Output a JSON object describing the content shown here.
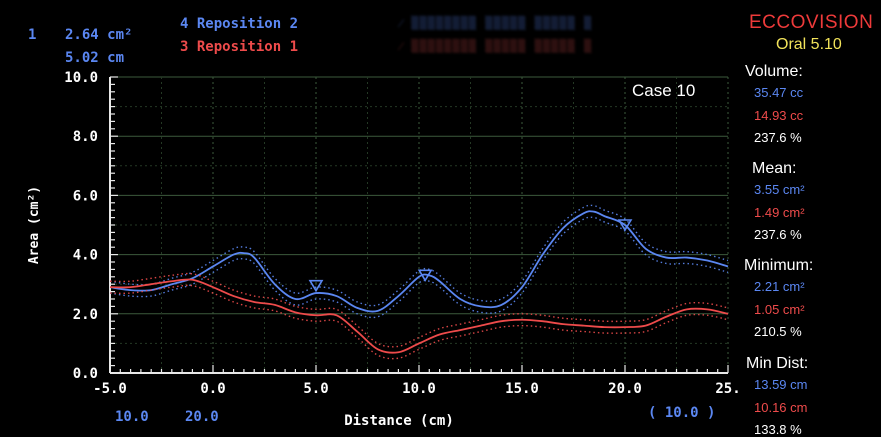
{
  "header": {
    "cursor_index": "1",
    "cursor_area": "2.64 cm²",
    "cursor_dist": "5.02 cm",
    "legend_blue": "4 Reposition 2",
    "legend_red": "3 Reposition 1",
    "brand": "ECCOVISION",
    "version": "Oral 5.10"
  },
  "case_label": "Case 10",
  "footer": {
    "left_a": "10.0",
    "left_b": "20.0",
    "right": "( 10.0 )"
  },
  "stats": {
    "volume_label": "Volume:",
    "volume_blue": "35.47 cc",
    "volume_red": "14.93 cc",
    "volume_pct": "237.6 %",
    "mean_label": "Mean:",
    "mean_blue": "3.55 cm²",
    "mean_red": "1.49 cm²",
    "mean_pct": "237.6 %",
    "min_label": "Minimum:",
    "min_blue": "2.21 cm²",
    "min_red": "1.05 cm²",
    "min_pct": "210.5 %",
    "mindist_label": "Min Dist:",
    "mindist_blue": "13.59 cm",
    "mindist_red": "10.16 cm",
    "mindist_pct": "133.8 %"
  },
  "colors": {
    "blue": "#5b87f2",
    "red": "#ee4b4b",
    "grid": "#2f4a2f"
  },
  "chart_data": {
    "type": "line",
    "xlabel": "Distance (cm)",
    "ylabel": "Area (cm²)",
    "xlim": [
      -5,
      25
    ],
    "ylim": [
      0,
      10
    ],
    "xticks": [
      "-5.0",
      "0.0",
      "5.0",
      "10.0",
      "15.0",
      "20.0",
      "25."
    ],
    "yticks": [
      "0.0",
      "2.0",
      "4.0",
      "6.0",
      "8.0",
      "10.0"
    ],
    "grid": true,
    "series": [
      {
        "name": "4 Reposition 2",
        "color": "#5b87f2",
        "x": [
          -5,
          -4,
          -3,
          -2,
          -1,
          0,
          1,
          1.5,
          2,
          3,
          4,
          5,
          6,
          7,
          8,
          9,
          10,
          10.5,
          11,
          12,
          13,
          14,
          15,
          16,
          17,
          18,
          18.5,
          19,
          20,
          21,
          22,
          23,
          24,
          25
        ],
        "y": [
          2.9,
          2.8,
          2.8,
          3.0,
          3.2,
          3.6,
          4.0,
          4.05,
          3.9,
          3.0,
          2.5,
          2.7,
          2.6,
          2.2,
          2.1,
          2.6,
          3.25,
          3.3,
          3.1,
          2.5,
          2.25,
          2.3,
          2.9,
          4.0,
          4.9,
          5.4,
          5.45,
          5.3,
          5.0,
          4.2,
          3.9,
          3.9,
          3.8,
          3.6
        ]
      },
      {
        "name": "3 Reposition 1",
        "color": "#ee4b4b",
        "x": [
          -5,
          -4,
          -3,
          -2,
          -1,
          0,
          1,
          2,
          3,
          4,
          5,
          6,
          7,
          8,
          9,
          10,
          11,
          12,
          13,
          14,
          15,
          16,
          17,
          18,
          19,
          20,
          21,
          22,
          23,
          24,
          25
        ],
        "y": [
          2.9,
          2.9,
          3.0,
          3.1,
          3.15,
          2.9,
          2.6,
          2.4,
          2.3,
          2.05,
          1.95,
          1.95,
          1.4,
          0.8,
          0.7,
          1.0,
          1.3,
          1.45,
          1.6,
          1.75,
          1.8,
          1.75,
          1.65,
          1.6,
          1.55,
          1.55,
          1.6,
          1.9,
          2.15,
          2.15,
          2.0
        ]
      }
    ],
    "markers": [
      {
        "series": "4 Reposition 2",
        "x": [
          5.0,
          10.3,
          20.0
        ],
        "y": [
          2.95,
          3.3,
          5.0
        ],
        "symbol": "triangle-down"
      }
    ]
  }
}
